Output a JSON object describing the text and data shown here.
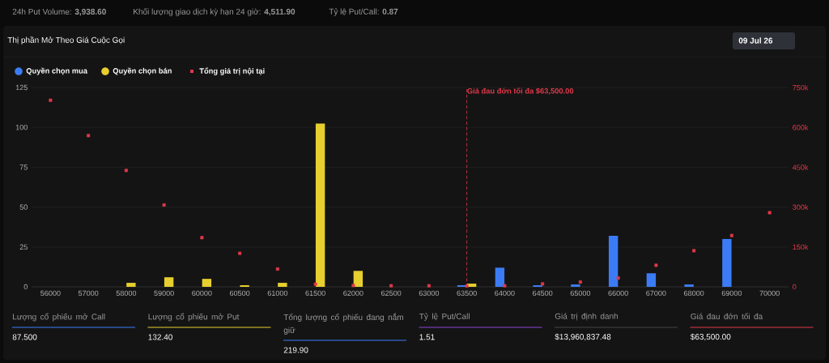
{
  "chart_data": {
    "type": "bar",
    "title": "Thị phần Mở Theo Giá Cuộc Gọi",
    "categories": [
      "56000",
      "57000",
      "58000",
      "59000",
      "60000",
      "60500",
      "61000",
      "61500",
      "62000",
      "62500",
      "63000",
      "63500",
      "64000",
      "64500",
      "65000",
      "66000",
      "67000",
      "68000",
      "69000",
      "70000"
    ],
    "series": [
      {
        "name": "Quyền chọn mua",
        "color": "#3b7cf6",
        "values": [
          0,
          0,
          0,
          0,
          0,
          0,
          0,
          0,
          0,
          0,
          0,
          1,
          12,
          1,
          1.5,
          32,
          8.5,
          1.5,
          30,
          0
        ]
      },
      {
        "name": "Quyền chọn bán",
        "color": "#e6cf2e",
        "values": [
          0,
          0,
          2.5,
          6,
          5,
          1,
          2.5,
          102.4,
          10,
          0,
          0,
          2,
          0,
          0,
          0,
          0,
          0,
          0,
          0,
          0
        ]
      },
      {
        "name": "Tổng giá trị nội tại",
        "type": "scatter",
        "axis": "y2",
        "color": "#e0394a",
        "values": [
          702000,
          569000,
          438000,
          308000,
          185000,
          126000,
          67000,
          10000,
          5000,
          4000,
          4000,
          3000,
          4000,
          11000,
          18000,
          33000,
          81000,
          136000,
          193000,
          279000
        ]
      }
    ],
    "ylim": [
      0,
      125
    ],
    "yticks": [
      0,
      25,
      50,
      75,
      100,
      125
    ],
    "y2lim": [
      0,
      750000
    ],
    "y2ticks": [
      0,
      {
        "value": 150000,
        "label": "150k"
      },
      {
        "value": 300000,
        "label": "300k"
      },
      {
        "value": 450000,
        "label": "450k"
      },
      {
        "value": 600000,
        "label": "600k"
      },
      {
        "value": 750000,
        "label": "750k"
      }
    ],
    "grid": "y",
    "legend": "top left",
    "marker": "square",
    "ref_lines": [
      {
        "axis": "x",
        "value": "63500",
        "label": "Giá đau đớn tối đa $63,500.00",
        "color": "#e0394a",
        "line_style": "dashed"
      }
    ],
    "annotations": [
      "24h Put Volume: **3,938.60**",
      "Khối lượng giao dịch kỳ hạn 24 giờ: **4,511.90**",
      "Tỷ lệ Put/Call: **0.87**",
      "09 Jul 26",
      "Lượng cổ phiếu mở Call",
      "87.500",
      "Lượng cổ phiếu mở Put",
      "132.40",
      "Tổng lượng cổ phiếu đang nắm giữ",
      "219.90",
      "Tỷ lệ Put/Call",
      "1.51",
      "Giá trị định danh",
      "$13,960,837.48",
      "Giá đau đớn tối đa",
      "$63,500.00"
    ]
  }
}
